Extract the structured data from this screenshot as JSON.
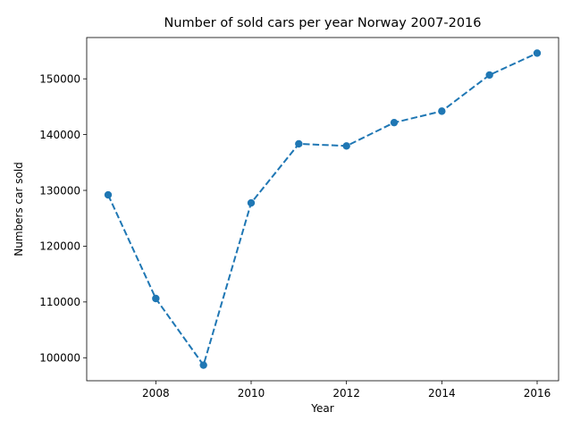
{
  "chart_data": {
    "type": "line",
    "title": "Number of sold cars per year Norway 2007-2016",
    "xlabel": "Year",
    "ylabel": "Numbers car sold",
    "x": [
      2007,
      2008,
      2009,
      2010,
      2011,
      2012,
      2013,
      2014,
      2015,
      2016
    ],
    "series": [
      {
        "values": [
          129195,
          110617,
          98675,
          127754,
          138345,
          137967,
          142151,
          144202,
          150686,
          154603
        ],
        "color": "#1f77b4",
        "line_style": "dashed",
        "marker": "circle"
      }
    ],
    "x_ticks": [
      2008,
      2010,
      2012,
      2014,
      2016
    ],
    "x_tick_labels": [
      "2008",
      "2010",
      "2012",
      "2014",
      "2016"
    ],
    "y_ticks": [
      100000,
      110000,
      120000,
      130000,
      140000,
      150000
    ],
    "y_tick_labels": [
      "100000",
      "110000",
      "120000",
      "130000",
      "140000",
      "150000"
    ],
    "xlim": [
      2006.55,
      2016.45
    ],
    "ylim": [
      95878,
      157400
    ],
    "grid": false,
    "legend": "none"
  }
}
